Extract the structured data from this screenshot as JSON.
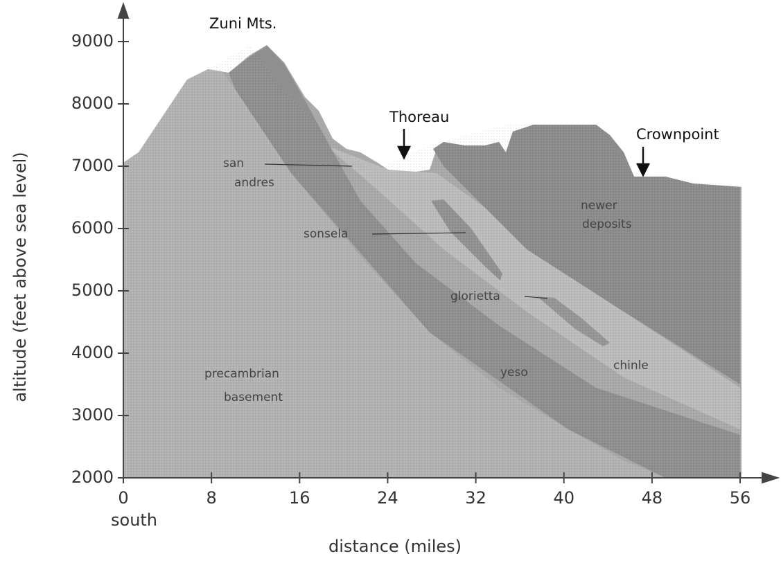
{
  "title": "Zuni Mts.",
  "y_axis": {
    "label": "altitude (feet above sea level)",
    "ticks": [
      "9000",
      "8000",
      "7000",
      "6000",
      "5000",
      "4000",
      "3000",
      "2000"
    ]
  },
  "x_axis": {
    "label": "distance (miles)",
    "ticks": [
      "0",
      "8",
      "16",
      "24",
      "32",
      "40",
      "48",
      "56"
    ],
    "origin_note": "south"
  },
  "places": [
    "Thoreau",
    "Crownpoint"
  ],
  "layers": {
    "san_andres": [
      "san",
      "andres"
    ],
    "sonsela": "sonsela",
    "glorietta": "glorietta",
    "newer_deposits": [
      "newer",
      "deposits"
    ],
    "yeso": "yeso",
    "chinle": "chinle",
    "precambrian_basement": [
      "precambrian",
      "basement"
    ]
  }
}
